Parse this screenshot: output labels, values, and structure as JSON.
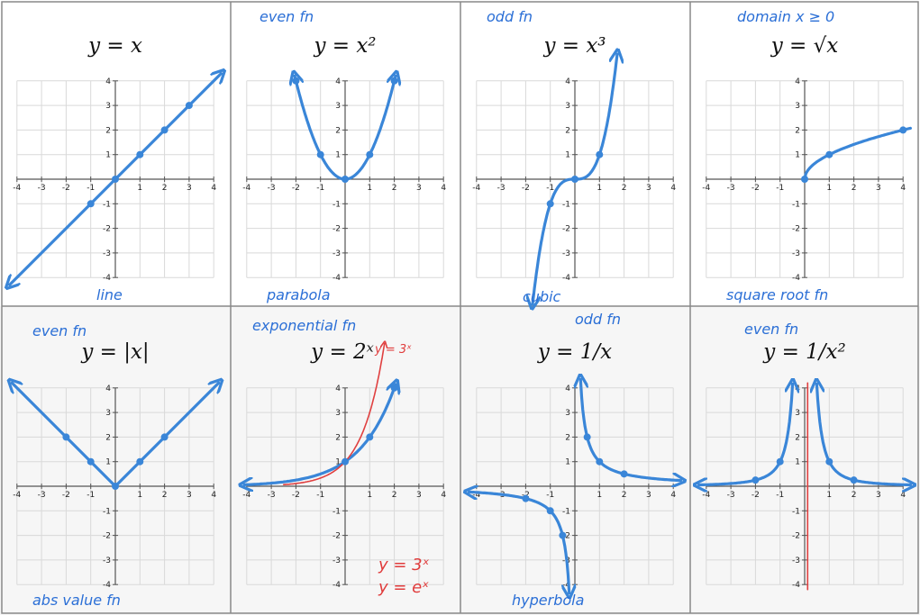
{
  "colors": {
    "ink_blue": "#3a86d8",
    "note_blue": "#2b6fd6",
    "ink_red": "#e04040",
    "grid": "#d9d9d9",
    "axis": "#555555",
    "cell_border": "#888888"
  },
  "chart_data": [
    {
      "type": "line",
      "id": "p1",
      "title": "y = x",
      "xlim": [
        -4,
        4
      ],
      "ylim": [
        -4,
        4
      ],
      "grid": true,
      "series": [
        {
          "kind": "curve",
          "color": "blue",
          "points": [
            [
              -4.3,
              -4.3
            ],
            [
              4.3,
              4.3
            ]
          ],
          "arrow_start": true,
          "arrow_end": true
        },
        {
          "kind": "dots",
          "color": "blue",
          "points": [
            [
              0,
              0
            ],
            [
              1,
              1
            ],
            [
              2,
              2
            ],
            [
              3,
              3
            ],
            [
              -1,
              -1
            ]
          ]
        }
      ],
      "annotations": [
        "line"
      ]
    },
    {
      "type": "line",
      "id": "p2",
      "title": "y = x²",
      "xlim": [
        -4,
        4
      ],
      "ylim": [
        -4,
        4
      ],
      "grid": true,
      "series": [
        {
          "kind": "function",
          "fn": "square",
          "color": "blue",
          "domain": [
            -2.05,
            2.05
          ],
          "arrow_start": true,
          "arrow_end": true
        },
        {
          "kind": "dots",
          "color": "blue",
          "points": [
            [
              0,
              0
            ],
            [
              1,
              1
            ],
            [
              -1,
              1
            ],
            [
              2,
              4
            ],
            [
              -2,
              4
            ]
          ]
        }
      ],
      "annotations": [
        "even fn",
        "parabola"
      ]
    },
    {
      "type": "line",
      "id": "p3",
      "title": "y = x³",
      "xlim": [
        -4,
        4
      ],
      "ylim": [
        -4,
        4
      ],
      "grid": true,
      "series": [
        {
          "kind": "function",
          "fn": "cube",
          "color": "blue",
          "domain": [
            -1.72,
            1.72
          ],
          "arrow_start": true,
          "arrow_end": true
        },
        {
          "kind": "dots",
          "color": "blue",
          "points": [
            [
              0,
              0
            ],
            [
              1,
              1
            ],
            [
              -1,
              -1
            ]
          ]
        }
      ],
      "annotations": [
        "odd fn",
        "cubic"
      ]
    },
    {
      "type": "line",
      "id": "p4",
      "title": "y = √x",
      "xlim": [
        -4,
        4
      ],
      "ylim": [
        -4,
        4
      ],
      "grid": true,
      "series": [
        {
          "kind": "function",
          "fn": "sqrt",
          "color": "blue",
          "domain": [
            0,
            4.3
          ],
          "arrow_start": false,
          "arrow_end": false
        },
        {
          "kind": "dots",
          "color": "blue",
          "points": [
            [
              0,
              0
            ],
            [
              1,
              1
            ],
            [
              4,
              2
            ]
          ]
        }
      ],
      "annotations": [
        "domain x ≥ 0",
        "square root fn"
      ]
    },
    {
      "type": "line",
      "id": "p5",
      "title": "y = |x|",
      "xlim": [
        -4,
        4
      ],
      "ylim": [
        -4,
        4
      ],
      "grid": true,
      "series": [
        {
          "kind": "curve",
          "color": "blue",
          "points": [
            [
              -4.2,
              4.2
            ],
            [
              0,
              0
            ],
            [
              4.2,
              4.2
            ]
          ],
          "arrow_start": true,
          "arrow_end": true
        },
        {
          "kind": "dots",
          "color": "blue",
          "points": [
            [
              -2,
              2
            ],
            [
              -1,
              1
            ],
            [
              0,
              0
            ],
            [
              1,
              1
            ],
            [
              2,
              2
            ]
          ]
        }
      ],
      "annotations": [
        "even fn",
        "abs value fn"
      ]
    },
    {
      "type": "line",
      "id": "p6",
      "title": "y = 2ˣ",
      "xlim": [
        -4,
        4
      ],
      "ylim": [
        -4,
        4
      ],
      "grid": true,
      "series": [
        {
          "kind": "function",
          "fn": "exp2",
          "color": "blue",
          "domain": [
            -4.1,
            2.05
          ],
          "arrow_start": true,
          "arrow_end": true
        },
        {
          "kind": "function",
          "fn": "exp3",
          "color": "red",
          "domain": [
            -2.5,
            1.6
          ],
          "arrow_start": false,
          "arrow_end": true
        },
        {
          "kind": "dots",
          "color": "blue",
          "points": [
            [
              0,
              1
            ],
            [
              1,
              2
            ],
            [
              2,
              4
            ]
          ]
        }
      ],
      "annotations": [
        "exponential fn",
        "y = 3ˣ",
        "y = 3ˣ",
        "y = eˣ"
      ]
    },
    {
      "type": "line",
      "id": "p7",
      "title": "y = 1/x",
      "xlim": [
        -4,
        4
      ],
      "ylim": [
        -4,
        4
      ],
      "grid": true,
      "series": [
        {
          "kind": "function",
          "fn": "inv",
          "color": "blue",
          "domain": [
            0.23,
            4.3
          ],
          "arrow_start": true,
          "arrow_end": true
        },
        {
          "kind": "function",
          "fn": "inv",
          "color": "blue",
          "domain": [
            -4.3,
            -0.23
          ],
          "arrow_start": true,
          "arrow_end": true
        },
        {
          "kind": "dots",
          "color": "blue",
          "points": [
            [
              0.5,
              2
            ],
            [
              1,
              1
            ],
            [
              2,
              0.5
            ],
            [
              -0.5,
              -2
            ],
            [
              -1,
              -1
            ],
            [
              -2,
              -0.5
            ]
          ]
        }
      ],
      "annotations": [
        "odd fn",
        "hyperbola"
      ]
    },
    {
      "type": "line",
      "id": "p8",
      "title": "y = 1/x²",
      "xlim": [
        -4,
        4
      ],
      "ylim": [
        -4,
        4
      ],
      "grid": true,
      "series": [
        {
          "kind": "function",
          "fn": "invsq",
          "color": "blue",
          "domain": [
            0.49,
            4.3
          ],
          "arrow_start": true,
          "arrow_end": true
        },
        {
          "kind": "function",
          "fn": "invsq",
          "color": "blue",
          "domain": [
            -4.3,
            -0.49
          ],
          "arrow_start": true,
          "arrow_end": true
        },
        {
          "kind": "curve",
          "color": "red",
          "points": [
            [
              0.12,
              4.2
            ],
            [
              0.12,
              -4.2
            ]
          ],
          "arrow_start": false,
          "arrow_end": false
        },
        {
          "kind": "dots",
          "color": "blue",
          "points": [
            [
              1,
              1
            ],
            [
              2,
              0.25
            ],
            [
              -1,
              1
            ],
            [
              -2,
              0.25
            ]
          ]
        }
      ],
      "annotations": [
        "even fn"
      ]
    }
  ]
}
